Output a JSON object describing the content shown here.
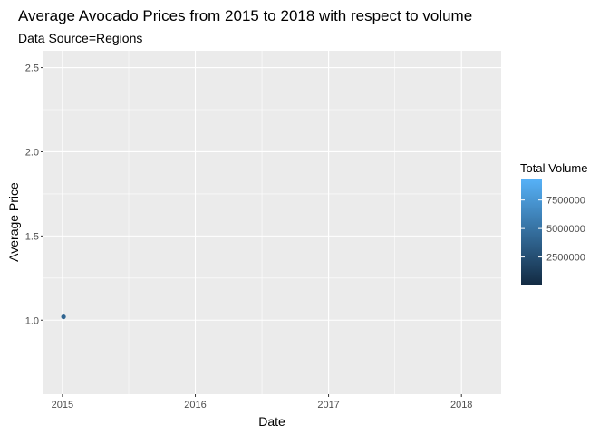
{
  "chart_data": {
    "type": "scatter",
    "title": "Average Avocado Prices from 2015 to 2018 with respect to volume",
    "subtitle": "Data Source=Regions",
    "xlabel": "Date",
    "ylabel": "Average Price",
    "x_ticks": [
      "2015",
      "2016",
      "2017",
      "2018"
    ],
    "y_ticks": [
      "1.0",
      "1.5",
      "2.0",
      "2.5"
    ],
    "xlim": [
      "2014-11-10",
      "2018-04-20"
    ],
    "ylim": [
      0.56,
      2.6
    ],
    "grid": true,
    "points": [
      {
        "x": "2015-01-04",
        "y": 1.02,
        "volume": 4100000
      }
    ],
    "legend": {
      "title": "Total Volume",
      "position": "right",
      "labels": [
        "7500000",
        "5000000",
        "2500000"
      ],
      "values": [
        7500000,
        5000000,
        2500000
      ],
      "range": [
        85000,
        9300000
      ],
      "color_low": "#132B43",
      "color_high": "#56B1F7"
    },
    "panel_background": "#EBEBEB",
    "grid_color": "#FFFFFF"
  }
}
